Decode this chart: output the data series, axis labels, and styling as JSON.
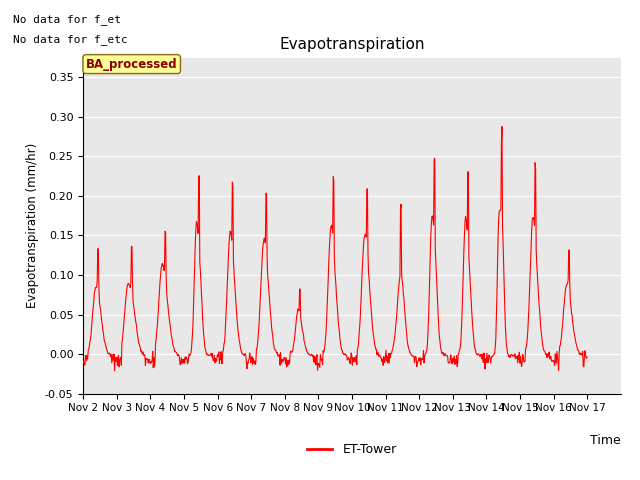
{
  "title": "Evapotranspiration",
  "xlabel": "Time",
  "ylabel": "Evapotranspiration (mm/hr)",
  "ylim": [
    -0.05,
    0.375
  ],
  "xlim": [
    0,
    960
  ],
  "line_color": "#FF0000",
  "line_width": 0.8,
  "bg_color": "#E8E8E8",
  "legend_label": "ET-Tower",
  "legend_box_color": "#FFFF99",
  "legend_box_text": "BA_processed",
  "top_left_text1": "No data for f_et",
  "top_left_text2": "No data for f_etc",
  "x_tick_labels": [
    "Nov 2",
    "Nov 3",
    "Nov 4",
    "Nov 5",
    "Nov 6",
    "Nov 7",
    "Nov 8",
    "Nov 9",
    "Nov 10",
    "Nov 11",
    "Nov 12",
    "Nov 13",
    "Nov 14",
    "Nov 15",
    "Nov 16",
    "Nov 17"
  ],
  "x_tick_positions": [
    0,
    60,
    120,
    180,
    240,
    300,
    360,
    420,
    480,
    540,
    600,
    660,
    720,
    780,
    840,
    900
  ],
  "yticks": [
    -0.05,
    0.0,
    0.05,
    0.1,
    0.15,
    0.2,
    0.25,
    0.3,
    0.35
  ],
  "figsize": [
    6.4,
    4.8
  ],
  "dpi": 100
}
